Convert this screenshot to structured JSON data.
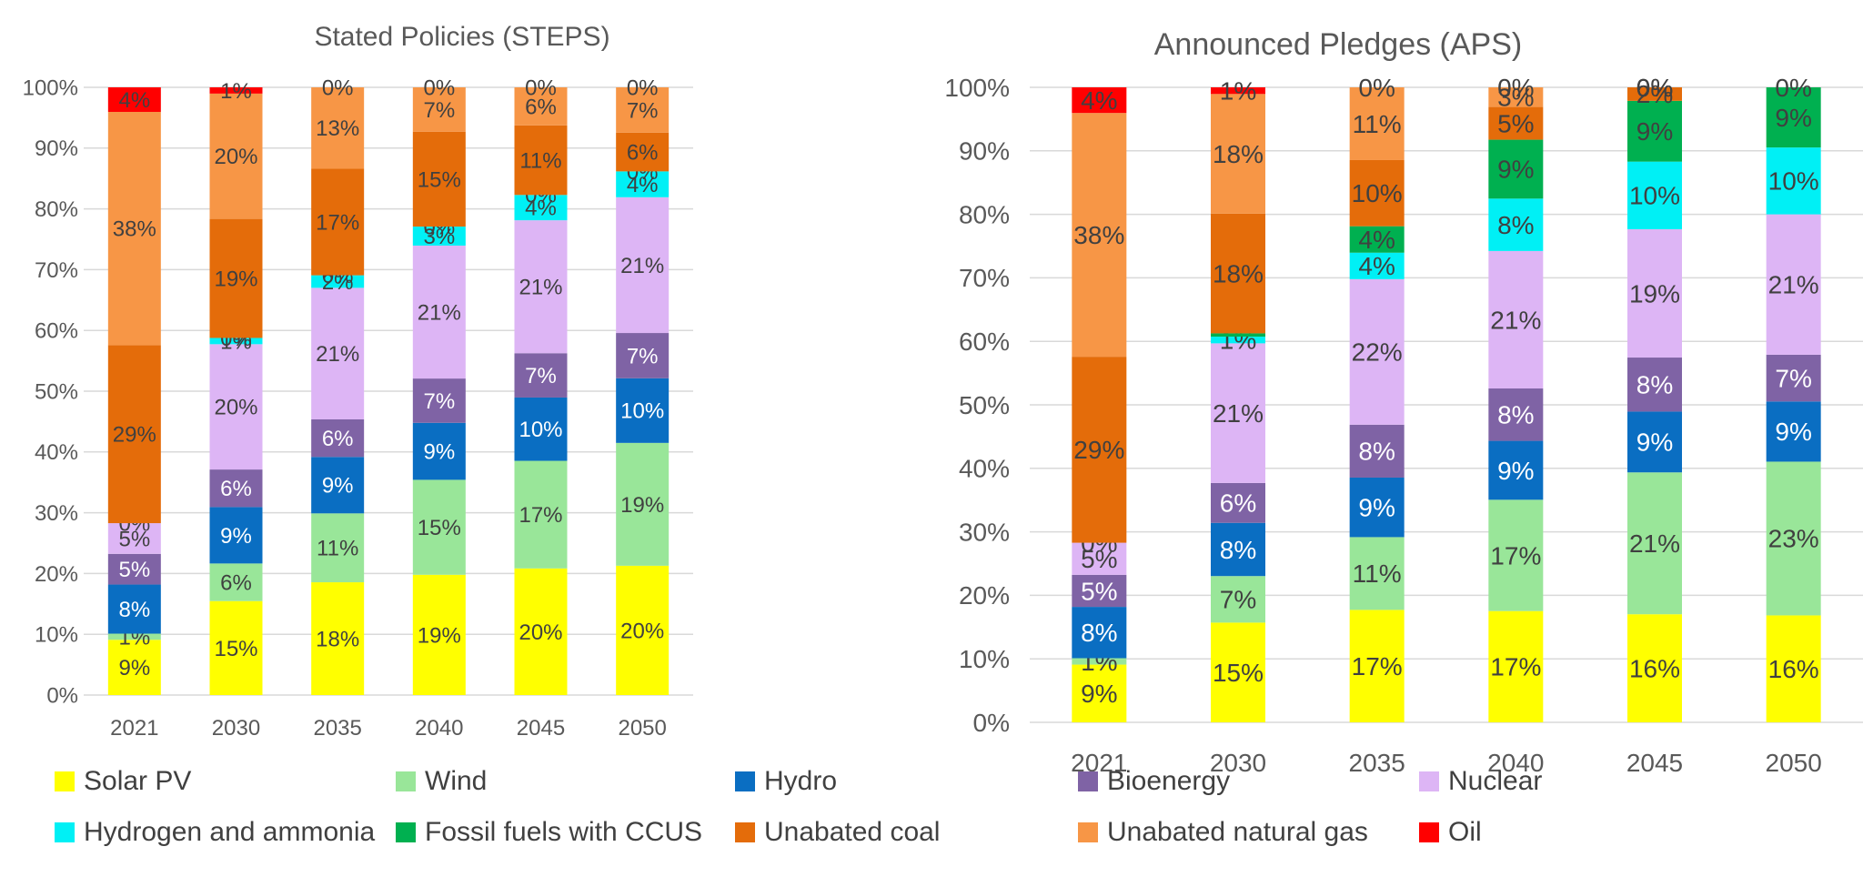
{
  "chart_data": [
    {
      "type": "bar",
      "stacked": "percent",
      "title": "Stated Policies (STEPS)",
      "categories": [
        "2021",
        "2030",
        "2035",
        "2040",
        "2045",
        "2050"
      ],
      "ylim": [
        0,
        100
      ],
      "yticks": [
        "0%",
        "10%",
        "20%",
        "30%",
        "40%",
        "50%",
        "60%",
        "70%",
        "80%",
        "90%",
        "100%"
      ],
      "grid": true,
      "series": [
        {
          "name": "Solar PV",
          "values": [
            9,
            15,
            18,
            19,
            20,
            20
          ],
          "labels": [
            "9%",
            "15%",
            "18%",
            "19%",
            "20%",
            "20%"
          ]
        },
        {
          "name": "Wind",
          "values": [
            1,
            6,
            11,
            15,
            17,
            19
          ],
          "labels": [
            "1%",
            "6%",
            "11%",
            "15%",
            "17%",
            "19%"
          ]
        },
        {
          "name": "Hydro",
          "values": [
            8,
            9,
            9,
            9,
            10,
            10
          ],
          "labels": [
            "8%",
            "9%",
            "9%",
            "9%",
            "10%",
            "10%"
          ]
        },
        {
          "name": "Bioenergy",
          "values": [
            5,
            6,
            6,
            7,
            7,
            7
          ],
          "labels": [
            "5%",
            "6%",
            "6%",
            "7%",
            "7%",
            "7%"
          ]
        },
        {
          "name": "Nuclear",
          "values": [
            5,
            20,
            21,
            21,
            21,
            21
          ],
          "labels": [
            "5%",
            "20%",
            "21%",
            "21%",
            "21%",
            "21%"
          ]
        },
        {
          "name": "Hydrogen and ammonia",
          "values": [
            0,
            1,
            2,
            3,
            4,
            4
          ],
          "labels": [
            "0%",
            "1%",
            "2%",
            "3%",
            "4%",
            "4%"
          ]
        },
        {
          "name": "Fossil fuels with CCUS",
          "values": [
            0,
            0,
            0,
            0,
            0,
            0
          ],
          "labels": [
            "",
            "0%",
            "0%",
            "0%",
            "0%",
            "0%"
          ]
        },
        {
          "name": "Unabated coal",
          "values": [
            29,
            19,
            17,
            15,
            11,
            6
          ],
          "labels": [
            "29%",
            "19%",
            "17%",
            "15%",
            "11%",
            "6%"
          ]
        },
        {
          "name": "Unabated natural gas",
          "values": [
            38,
            20,
            13,
            7,
            6,
            7
          ],
          "labels": [
            "38%",
            "20%",
            "13%",
            "7%",
            "6%",
            "7%"
          ]
        },
        {
          "name": "Oil",
          "values": [
            4,
            1,
            0,
            0,
            0,
            0
          ],
          "labels": [
            "4%",
            "1%",
            "0%",
            "0%",
            "0%",
            "0%"
          ]
        }
      ]
    },
    {
      "type": "bar",
      "stacked": "percent",
      "title": "Announced Pledges (APS)",
      "categories": [
        "2021",
        "2030",
        "2035",
        "2040",
        "2045",
        "2050"
      ],
      "ylim": [
        0,
        100
      ],
      "yticks": [
        "0%",
        "10%",
        "20%",
        "30%",
        "40%",
        "50%",
        "60%",
        "70%",
        "80%",
        "90%",
        "100%"
      ],
      "grid": true,
      "series": [
        {
          "name": "Solar PV",
          "values": [
            9,
            15,
            17,
            17,
            16,
            16
          ],
          "labels": [
            "9%",
            "15%",
            "17%",
            "17%",
            "16%",
            "16%"
          ]
        },
        {
          "name": "Wind",
          "values": [
            1,
            7,
            11,
            17,
            21,
            23
          ],
          "labels": [
            "1%",
            "7%",
            "11%",
            "17%",
            "21%",
            "23%"
          ]
        },
        {
          "name": "Hydro",
          "values": [
            8,
            8,
            9,
            9,
            9,
            9
          ],
          "labels": [
            "8%",
            "8%",
            "9%",
            "9%",
            "9%",
            "9%"
          ]
        },
        {
          "name": "Bioenergy",
          "values": [
            5,
            6,
            8,
            8,
            8,
            7
          ],
          "labels": [
            "5%",
            "6%",
            "8%",
            "8%",
            "8%",
            "7%"
          ]
        },
        {
          "name": "Nuclear",
          "values": [
            5,
            21,
            22,
            21,
            19,
            21
          ],
          "labels": [
            "5%",
            "21%",
            "22%",
            "21%",
            "19%",
            "21%"
          ]
        },
        {
          "name": "Hydrogen and ammonia",
          "values": [
            0,
            1,
            4,
            8,
            10,
            10
          ],
          "labels": [
            "0%",
            "1%",
            "4%",
            "8%",
            "10%",
            "10%"
          ]
        },
        {
          "name": "Fossil fuels with CCUS",
          "values": [
            0,
            0.5,
            4,
            9,
            9,
            9
          ],
          "labels": [
            "",
            "",
            "4%",
            "9%",
            "9%",
            "9%"
          ]
        },
        {
          "name": "Unabated coal",
          "values": [
            29,
            18,
            10,
            5,
            2,
            0
          ],
          "labels": [
            "29%",
            "18%",
            "10%",
            "5%",
            "2%",
            ""
          ]
        },
        {
          "name": "Unabated natural gas",
          "values": [
            38,
            18,
            11,
            3,
            0,
            0
          ],
          "labels": [
            "38%",
            "18%",
            "11%",
            "3%",
            "0%",
            ""
          ]
        },
        {
          "name": "Oil",
          "values": [
            4,
            1,
            0,
            0,
            0,
            0
          ],
          "labels": [
            "4%",
            "1%",
            "0%",
            "0%",
            "0%",
            "0%"
          ]
        }
      ]
    }
  ],
  "legend": [
    {
      "label": "Solar PV",
      "color": "#FFFF00"
    },
    {
      "label": "Wind",
      "color": "#99E699"
    },
    {
      "label": "Hydro",
      "color": "#0A6EC2"
    },
    {
      "label": "Bioenergy",
      "color": "#7F63A5"
    },
    {
      "label": "Nuclear",
      "color": "#DDB5F5"
    },
    {
      "label": "Hydrogen and ammonia",
      "color": "#00F0F5"
    },
    {
      "label": "Fossil fuels with CCUS",
      "color": "#00B050"
    },
    {
      "label": "Unabated coal",
      "color": "#E46C0A"
    },
    {
      "label": "Unabated natural gas",
      "color": "#F79646"
    },
    {
      "label": "Oil",
      "color": "#FF0000"
    }
  ]
}
